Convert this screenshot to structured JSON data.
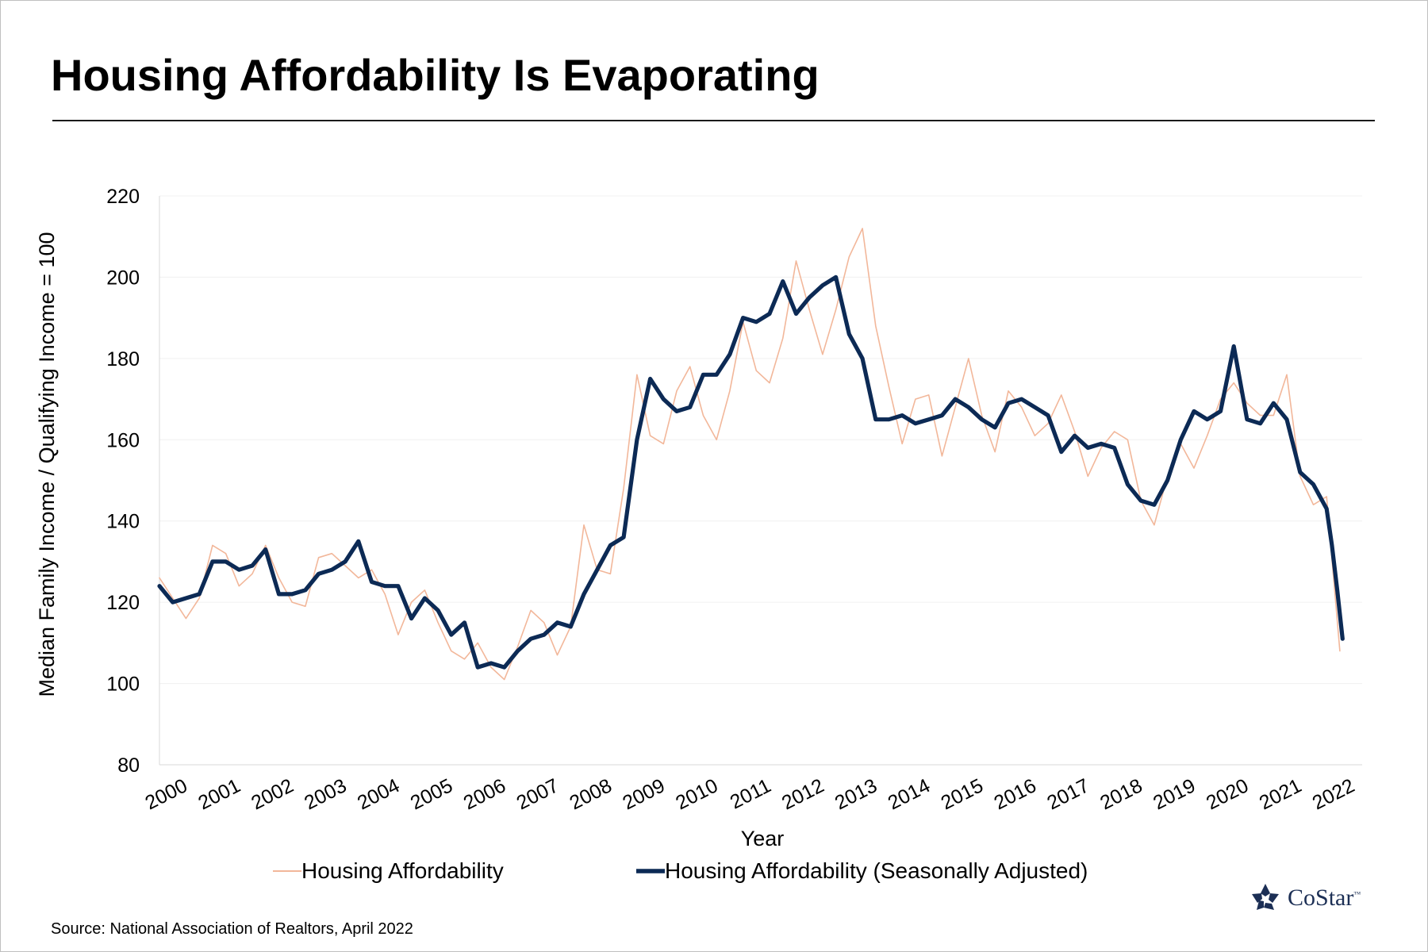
{
  "title": "Housing Affordability Is Evaporating",
  "source": "Source: National Association of Realtors, April 2022",
  "logo": {
    "text": "CoStar",
    "tm": "™",
    "icon": "costar-star-icon",
    "color": "#1c2f55"
  },
  "chart_data": {
    "type": "line",
    "title": "",
    "xlabel": "Year",
    "ylabel": "Median Family Income / Qualifying Income = 100",
    "ylim": [
      80,
      220
    ],
    "yticks": [
      80,
      100,
      120,
      140,
      160,
      180,
      200,
      220
    ],
    "xlim": [
      2000,
      2022.67
    ],
    "xtick_labels": [
      "2000",
      "2001",
      "2002",
      "2003",
      "2004",
      "2005",
      "2006",
      "2007",
      "2008",
      "2009",
      "2010",
      "2011",
      "2012",
      "2013",
      "2014",
      "2015",
      "2016",
      "2017",
      "2018",
      "2019",
      "2020",
      "2021",
      "2022"
    ],
    "grid": "horizontal",
    "legend_position": "bottom",
    "series": [
      {
        "name": "Housing Affordability",
        "color": "#f2b79a",
        "x": [
          2000.0,
          2000.25,
          2000.5,
          2000.75,
          2001.0,
          2001.25,
          2001.5,
          2001.75,
          2002.0,
          2002.25,
          2002.5,
          2002.75,
          2003.0,
          2003.25,
          2003.5,
          2003.75,
          2004.0,
          2004.25,
          2004.5,
          2004.75,
          2005.0,
          2005.25,
          2005.5,
          2005.75,
          2006.0,
          2006.25,
          2006.5,
          2006.75,
          2007.0,
          2007.25,
          2007.5,
          2007.75,
          2008.0,
          2008.25,
          2008.5,
          2008.75,
          2009.0,
          2009.25,
          2009.5,
          2009.75,
          2010.0,
          2010.25,
          2010.5,
          2010.75,
          2011.0,
          2011.25,
          2011.5,
          2011.75,
          2012.0,
          2012.25,
          2012.5,
          2012.75,
          2013.0,
          2013.25,
          2013.5,
          2013.75,
          2014.0,
          2014.25,
          2014.5,
          2014.75,
          2015.0,
          2015.25,
          2015.5,
          2015.75,
          2016.0,
          2016.25,
          2016.5,
          2016.75,
          2017.0,
          2017.25,
          2017.5,
          2017.75,
          2018.0,
          2018.25,
          2018.5,
          2018.75,
          2019.0,
          2019.25,
          2019.5,
          2019.75,
          2020.0,
          2020.25,
          2020.5,
          2020.75,
          2021.0,
          2021.25,
          2021.5,
          2021.75,
          2022.0,
          2022.25
        ],
        "values": [
          126,
          121,
          116,
          121,
          134,
          132,
          124,
          127,
          134,
          126,
          120,
          119,
          131,
          132,
          129,
          126,
          128,
          122,
          112,
          120,
          123,
          115,
          108,
          106,
          110,
          104,
          101,
          109,
          118,
          115,
          107,
          114,
          139,
          128,
          127,
          148,
          176,
          161,
          159,
          172,
          178,
          166,
          160,
          172,
          189,
          177,
          174,
          185,
          204,
          192,
          181,
          192,
          205,
          212,
          188,
          173,
          159,
          170,
          171,
          156,
          168,
          180,
          166,
          157,
          172,
          168,
          161,
          164,
          171,
          162,
          151,
          158,
          162,
          160,
          145,
          139,
          151,
          159,
          153,
          161,
          170,
          174,
          169,
          166,
          166,
          176,
          151,
          144,
          146,
          108
        ]
      },
      {
        "name": "Housing Affordability (Seasonally Adjusted)",
        "color": "#0c2a55",
        "x": [
          2000.0,
          2000.25,
          2000.5,
          2000.75,
          2001.0,
          2001.25,
          2001.5,
          2001.75,
          2002.0,
          2002.25,
          2002.5,
          2002.75,
          2003.0,
          2003.25,
          2003.5,
          2003.75,
          2004.0,
          2004.25,
          2004.5,
          2004.75,
          2005.0,
          2005.25,
          2005.5,
          2005.75,
          2006.0,
          2006.25,
          2006.5,
          2006.75,
          2007.0,
          2007.25,
          2007.5,
          2007.75,
          2008.0,
          2008.25,
          2008.5,
          2008.75,
          2009.0,
          2009.25,
          2009.5,
          2009.75,
          2010.0,
          2010.25,
          2010.5,
          2010.75,
          2011.0,
          2011.25,
          2011.5,
          2011.75,
          2012.0,
          2012.25,
          2012.5,
          2012.75,
          2013.0,
          2013.25,
          2013.5,
          2013.75,
          2014.0,
          2014.25,
          2014.5,
          2014.75,
          2015.0,
          2015.25,
          2015.5,
          2015.75,
          2016.0,
          2016.25,
          2016.5,
          2016.75,
          2017.0,
          2017.25,
          2017.5,
          2017.75,
          2018.0,
          2018.25,
          2018.5,
          2018.75,
          2019.0,
          2019.25,
          2019.5,
          2019.75,
          2020.0,
          2020.25,
          2020.5,
          2020.75,
          2021.0,
          2021.25,
          2021.5,
          2021.75,
          2022.0,
          2022.1,
          2022.2,
          2022.3
        ],
        "values": [
          124,
          120,
          121,
          122,
          130,
          130,
          128,
          129,
          133,
          122,
          122,
          123,
          127,
          128,
          130,
          135,
          125,
          124,
          124,
          116,
          121,
          118,
          112,
          115,
          104,
          105,
          104,
          108,
          111,
          112,
          115,
          114,
          122,
          128,
          134,
          136,
          160,
          175,
          170,
          167,
          168,
          176,
          176,
          181,
          190,
          189,
          191,
          199,
          191,
          195,
          198,
          200,
          186,
          180,
          165,
          165,
          166,
          164,
          165,
          166,
          170,
          168,
          165,
          163,
          169,
          170,
          168,
          166,
          157,
          161,
          158,
          159,
          158,
          149,
          145,
          144,
          150,
          160,
          167,
          165,
          167,
          183,
          165,
          164,
          169,
          165,
          152,
          149,
          143,
          134,
          123,
          111
        ]
      }
    ]
  }
}
